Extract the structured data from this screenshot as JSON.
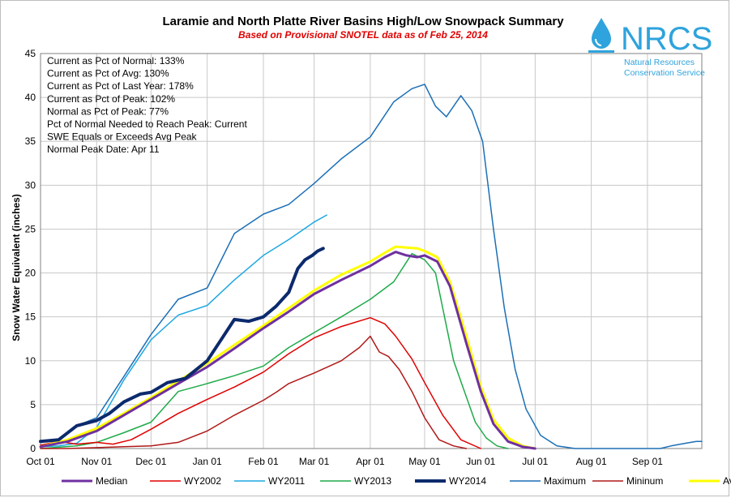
{
  "chart_data": {
    "type": "line",
    "title": "Laramie and North Platte River Basins High/Low Snowpack Summary",
    "subtitle": "Based on Provisional SNOTEL data as of Feb 25, 2014",
    "ylabel": "Snow Water Equivalent (inches)",
    "xlabel": "",
    "ylim": [
      0,
      45
    ],
    "yticks": [
      0,
      5,
      10,
      15,
      20,
      25,
      30,
      35,
      40,
      45
    ],
    "xlim": [
      0,
      365
    ],
    "xtick_positions": [
      0,
      31,
      61,
      92,
      123,
      151,
      182,
      212,
      243,
      273,
      304,
      335
    ],
    "xtick_labels": [
      "Oct 01",
      "Nov 01",
      "Dec 01",
      "Jan 01",
      "Feb 01",
      "Mar 01",
      "Apr 01",
      "May 01",
      "Jun 01",
      "Jul 01",
      "Aug 01",
      "Sep 01"
    ],
    "grid": true,
    "legend_position": "bottom",
    "stats": [
      "Current  as Pct of Normal: 133%",
      "Current  as Pct of Avg: 130%",
      "Current  as Pct of Last Year: 178%",
      "Current  as Pct of Peak: 102%",
      "Normal  as Pct of Peak: 77%",
      "Pct of Normal Needed  to Reach Peak: Current",
      "SWE Equals  or Exceeds Avg Peak",
      "Normal  Peak Date: Apr 11"
    ],
    "series": [
      {
        "name": "Median",
        "color": "#7030a0",
        "width": 3,
        "x": [
          0,
          15,
          31,
          46,
          61,
          76,
          92,
          107,
          123,
          137,
          151,
          166,
          182,
          190,
          196,
          202,
          208,
          212,
          219,
          226,
          235,
          243,
          250,
          258,
          266,
          273
        ],
        "y": [
          0.2,
          0.8,
          2.0,
          3.8,
          5.6,
          7.4,
          9.3,
          11.4,
          13.7,
          15.6,
          17.6,
          19.2,
          20.8,
          21.8,
          22.4,
          22.0,
          21.8,
          22.0,
          21.3,
          18.5,
          12.0,
          6.5,
          2.8,
          0.8,
          0.2,
          0.0
        ]
      },
      {
        "name": "WY2002",
        "color": "#e00000",
        "width": 1.5,
        "x": [
          0,
          10,
          20,
          31,
          40,
          50,
          61,
          76,
          92,
          107,
          123,
          137,
          151,
          166,
          182,
          190,
          196,
          205,
          212,
          222,
          232,
          243
        ],
        "y": [
          0.4,
          0.8,
          0.5,
          0.7,
          0.5,
          1.0,
          2.2,
          4.0,
          5.6,
          7.0,
          8.7,
          10.8,
          12.6,
          13.9,
          14.9,
          14.2,
          12.8,
          10.2,
          7.5,
          3.8,
          1.0,
          0.0
        ]
      },
      {
        "name": "WY2011",
        "color": "#1ea7e1",
        "width": 1.5,
        "x": [
          0,
          10,
          20,
          31,
          46,
          61,
          76,
          92,
          107,
          123,
          137,
          151,
          158
        ],
        "y": [
          0.2,
          0.3,
          0.6,
          2.4,
          7.8,
          12.4,
          15.2,
          16.3,
          19.2,
          22.0,
          23.8,
          25.8,
          26.6
        ]
      },
      {
        "name": "WY2013",
        "color": "#1faa4a",
        "width": 1.5,
        "x": [
          0,
          20,
          31,
          46,
          61,
          76,
          92,
          107,
          123,
          137,
          151,
          166,
          182,
          195,
          205,
          212,
          218,
          223,
          228,
          234,
          240,
          246,
          252,
          258
        ],
        "y": [
          0.0,
          0.3,
          0.7,
          1.8,
          3.0,
          6.5,
          7.4,
          8.3,
          9.4,
          11.5,
          13.2,
          15.0,
          17.0,
          19.0,
          22.2,
          21.5,
          20.0,
          15.0,
          10.0,
          6.5,
          3.0,
          1.2,
          0.3,
          0.0
        ]
      },
      {
        "name": "WY2014",
        "color": "#0c2a6d",
        "width": 4,
        "x": [
          0,
          10,
          20,
          31,
          38,
          46,
          55,
          61,
          70,
          80,
          92,
          100,
          107,
          115,
          123,
          130,
          137,
          142,
          146,
          150,
          153,
          156
        ],
        "y": [
          0.8,
          1.0,
          2.6,
          3.2,
          4.0,
          5.3,
          6.2,
          6.4,
          7.5,
          8.0,
          10.0,
          12.5,
          14.7,
          14.5,
          15.0,
          16.2,
          17.8,
          20.5,
          21.5,
          22.0,
          22.5,
          22.8
        ]
      },
      {
        "name": "Maximum",
        "color": "#1b6fb6",
        "width": 1.5,
        "x": [
          0,
          10,
          20,
          31,
          46,
          61,
          76,
          92,
          107,
          123,
          137,
          151,
          166,
          182,
          195,
          205,
          212,
          218,
          224,
          232,
          238,
          244,
          250,
          256,
          262,
          268,
          276,
          285,
          295,
          305,
          315,
          325,
          335,
          342,
          348,
          356,
          362,
          365
        ],
        "y": [
          0.8,
          1.1,
          2.6,
          3.5,
          8.2,
          13.0,
          17.0,
          18.3,
          24.5,
          26.7,
          27.8,
          30.2,
          33.0,
          35.5,
          39.5,
          41.0,
          41.5,
          39.0,
          37.8,
          40.2,
          38.5,
          35.0,
          25.0,
          16.0,
          9.0,
          4.5,
          1.5,
          0.3,
          0.0,
          0.0,
          0.0,
          0.0,
          0.0,
          0.0,
          0.3,
          0.6,
          0.8,
          0.8
        ]
      },
      {
        "name": "Mininum",
        "color": "#b01818",
        "width": 1.5,
        "x": [
          0,
          15,
          31,
          46,
          61,
          76,
          92,
          107,
          123,
          130,
          137,
          151,
          166,
          176,
          182,
          187,
          192,
          198,
          205,
          212,
          220,
          228,
          235
        ],
        "y": [
          0.0,
          0.0,
          0.1,
          0.2,
          0.3,
          0.7,
          2.0,
          3.8,
          5.5,
          6.4,
          7.4,
          8.6,
          10.0,
          11.5,
          12.8,
          11.0,
          10.5,
          9.0,
          6.5,
          3.5,
          1.0,
          0.3,
          0.0
        ]
      },
      {
        "name": "Averages",
        "color": "#ffff00",
        "width": 3,
        "x": [
          0,
          15,
          31,
          46,
          61,
          76,
          92,
          107,
          123,
          137,
          151,
          166,
          182,
          190,
          196,
          202,
          208,
          212,
          219,
          226,
          235,
          243,
          250,
          258,
          266,
          273
        ],
        "y": [
          0.2,
          1.0,
          2.3,
          4.0,
          5.8,
          7.7,
          9.7,
          11.8,
          14.0,
          16.0,
          18.0,
          19.8,
          21.3,
          22.3,
          23.0,
          22.9,
          22.8,
          22.5,
          21.8,
          19.0,
          12.8,
          7.0,
          3.3,
          1.2,
          0.3,
          0.0
        ]
      }
    ]
  },
  "logo": {
    "text": "NRCS",
    "line1": "Natural Resources",
    "line2": "Conservation Service",
    "color": "#2ea3dd"
  }
}
